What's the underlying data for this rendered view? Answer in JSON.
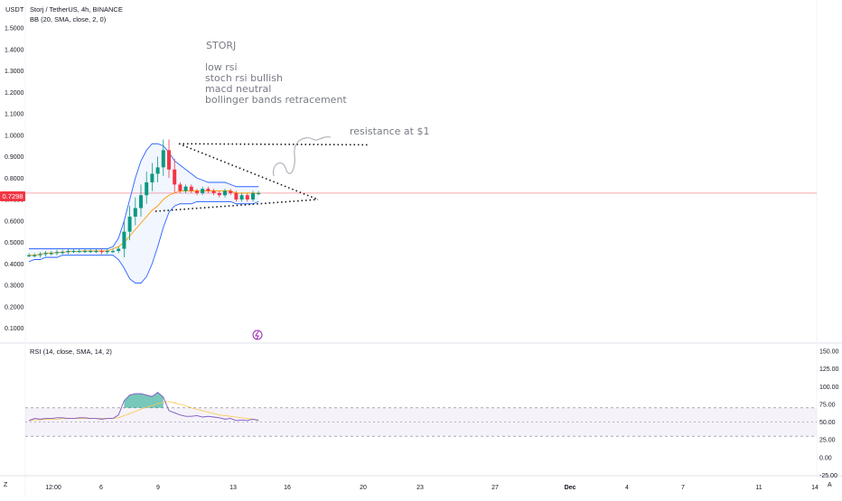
{
  "header": {
    "currency": "USDT",
    "symbol_line": "Storj / TetherUS, 4h, BINANCE",
    "indicator_bb": "BB (20, SMA, close, 2, 0)",
    "indicator_rsi": "RSI (14, close, SMA, 14, 2)"
  },
  "notes": {
    "title": "STORJ",
    "lines": [
      "low rsi",
      "stoch rsi bullish",
      "macd neutral",
      "bollinger bands retracement"
    ],
    "resistance": "resistance at $1"
  },
  "price_badge": "0.7298",
  "bottom_bar": {
    "left": "Z",
    "right": "A"
  },
  "colors": {
    "up": "#089981",
    "down": "#f23645",
    "bb_band": "#2962ff",
    "bb_basis": "#ff9800",
    "rsi_line": "#7e57c2",
    "rsi_ma": "#f7c948",
    "rsi_fill": "#7e57c2",
    "overbought_fill": "#089981"
  },
  "chart_data": [
    {
      "type": "candlestick",
      "title": "Storj / TetherUS, 4h, BINANCE",
      "y_ticks": [
        "1.5000",
        "1.4000",
        "1.3000",
        "1.2000",
        "1.1000",
        "1.0000",
        "0.9000",
        "0.8000",
        "0.7000",
        "0.6000",
        "0.5000",
        "0.4000",
        "0.3000",
        "0.2000",
        "0.1000"
      ],
      "ylim": [
        0.07,
        1.55
      ],
      "last_price": 0.7298,
      "x_ticks": [
        "12:00",
        "6",
        "9",
        "13",
        "16",
        "20",
        "23",
        "27",
        "Dec",
        "4",
        "7",
        "11",
        "14"
      ],
      "series": [
        {
          "name": "close",
          "values": [
            0.44,
            0.44,
            0.445,
            0.45,
            0.45,
            0.455,
            0.455,
            0.46,
            0.46,
            0.46,
            0.46,
            0.46,
            0.46,
            0.455,
            0.46,
            0.46,
            0.47,
            0.55,
            0.62,
            0.66,
            0.72,
            0.78,
            0.82,
            0.85,
            0.93,
            0.84,
            0.77,
            0.74,
            0.76,
            0.74,
            0.73,
            0.75,
            0.74,
            0.73,
            0.72,
            0.74,
            0.73,
            0.7,
            0.72,
            0.7,
            0.73,
            0.73
          ]
        },
        {
          "name": "BB upper",
          "values": [
            0.47,
            0.47,
            0.47,
            0.47,
            0.47,
            0.47,
            0.47,
            0.47,
            0.47,
            0.47,
            0.47,
            0.47,
            0.47,
            0.47,
            0.47,
            0.48,
            0.52,
            0.6,
            0.7,
            0.8,
            0.88,
            0.93,
            0.96,
            0.96,
            0.95,
            0.92,
            0.88,
            0.86,
            0.84,
            0.82,
            0.8,
            0.79,
            0.78,
            0.78,
            0.78,
            0.78,
            0.77,
            0.76,
            0.76,
            0.76,
            0.76,
            0.76
          ]
        },
        {
          "name": "BB basis",
          "values": [
            0.44,
            0.44,
            0.445,
            0.45,
            0.45,
            0.452,
            0.455,
            0.456,
            0.458,
            0.458,
            0.46,
            0.46,
            0.46,
            0.46,
            0.46,
            0.47,
            0.48,
            0.5,
            0.53,
            0.56,
            0.59,
            0.62,
            0.65,
            0.67,
            0.7,
            0.72,
            0.73,
            0.74,
            0.74,
            0.74,
            0.74,
            0.74,
            0.74,
            0.74,
            0.74,
            0.74,
            0.74,
            0.73,
            0.73,
            0.73,
            0.73,
            0.73
          ]
        },
        {
          "name": "BB lower",
          "values": [
            0.41,
            0.42,
            0.42,
            0.43,
            0.43,
            0.43,
            0.44,
            0.44,
            0.44,
            0.44,
            0.44,
            0.44,
            0.44,
            0.44,
            0.44,
            0.44,
            0.42,
            0.38,
            0.33,
            0.31,
            0.31,
            0.34,
            0.4,
            0.48,
            0.57,
            0.64,
            0.67,
            0.68,
            0.68,
            0.68,
            0.69,
            0.69,
            0.69,
            0.69,
            0.69,
            0.69,
            0.69,
            0.68,
            0.68,
            0.68,
            0.68,
            0.69
          ]
        }
      ],
      "annotations": [
        {
          "type": "horizontal_resistance",
          "price": 0.96
        },
        {
          "type": "symmetrical_triangle",
          "upper_from": 0.96,
          "lower_from": 0.65,
          "apex": 0.7
        }
      ]
    },
    {
      "type": "line",
      "title": "RSI (14, close, SMA, 14, 2)",
      "y_ticks": [
        "150.00",
        "125.00",
        "100.00",
        "75.00",
        "50.00",
        "25.00",
        "0.00",
        "-25.00"
      ],
      "ylim": [
        -30,
        155
      ],
      "bands": {
        "upper": 70,
        "middle": 50,
        "lower": 30
      },
      "series": [
        {
          "name": "RSI",
          "values": [
            52,
            55,
            54,
            55,
            55,
            56,
            56,
            55,
            55,
            56,
            56,
            55,
            55,
            54,
            55,
            55,
            60,
            80,
            88,
            90,
            90,
            88,
            86,
            92,
            85,
            66,
            63,
            60,
            58,
            58,
            59,
            57,
            58,
            57,
            56,
            54,
            55,
            52,
            53,
            52,
            54,
            52
          ]
        },
        {
          "name": "RSI-based MA",
          "values": [
            52,
            53,
            53,
            54,
            54,
            54,
            55,
            55,
            55,
            55,
            55,
            55,
            55,
            55,
            55,
            55,
            56,
            59,
            62,
            65,
            68,
            71,
            73,
            76,
            78,
            79,
            77,
            75,
            73,
            70,
            68,
            66,
            64,
            62,
            60,
            59,
            58,
            57,
            56,
            55,
            54,
            53
          ]
        }
      ]
    }
  ]
}
